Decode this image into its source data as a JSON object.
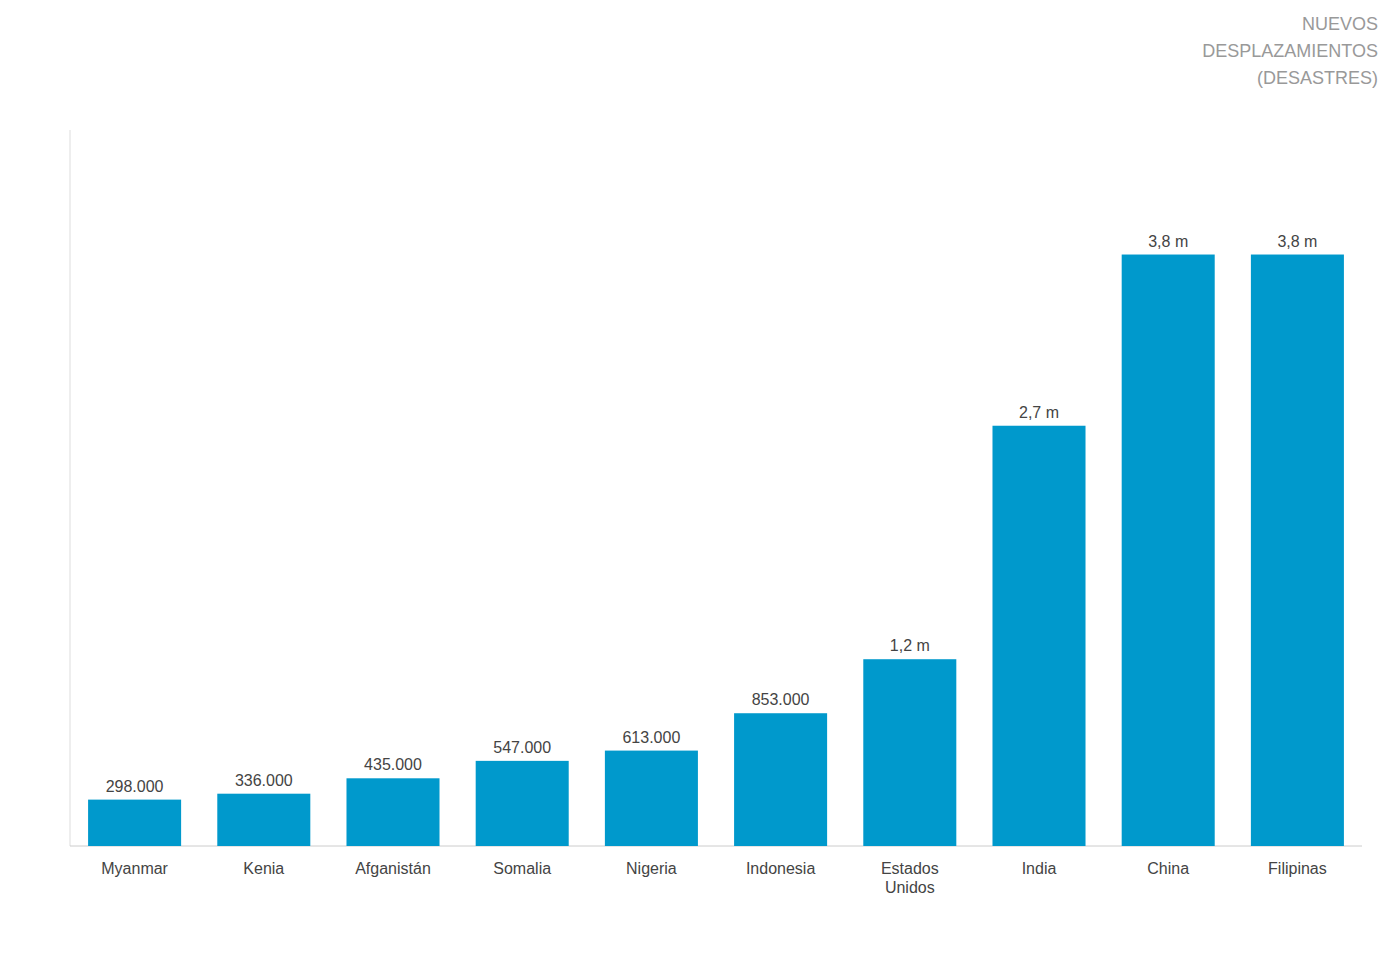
{
  "chart_data": {
    "type": "bar",
    "title": "NUEVOS\nDESPLAZAMIENTOS\n(DESASTRES)",
    "categories": [
      "Myanmar",
      "Kenia",
      "Afganistán",
      "Somalia",
      "Nigeria",
      "Indonesia",
      "Estados\nUnidos",
      "India",
      "China",
      "Filipinas"
    ],
    "values": [
      298000,
      336000,
      435000,
      547000,
      613000,
      853000,
      1200000,
      2700000,
      3800000,
      3800000
    ],
    "value_labels": [
      "298.000",
      "336.000",
      "435.000",
      "547.000",
      "613.000",
      "853.000",
      "1,2 m",
      "2,7 m",
      "3,8 m",
      "3,8 m"
    ],
    "data_labels": true,
    "color": "#0099CC",
    "ylim": [
      0,
      4600000
    ],
    "grid": false,
    "tick_labels": "x"
  }
}
